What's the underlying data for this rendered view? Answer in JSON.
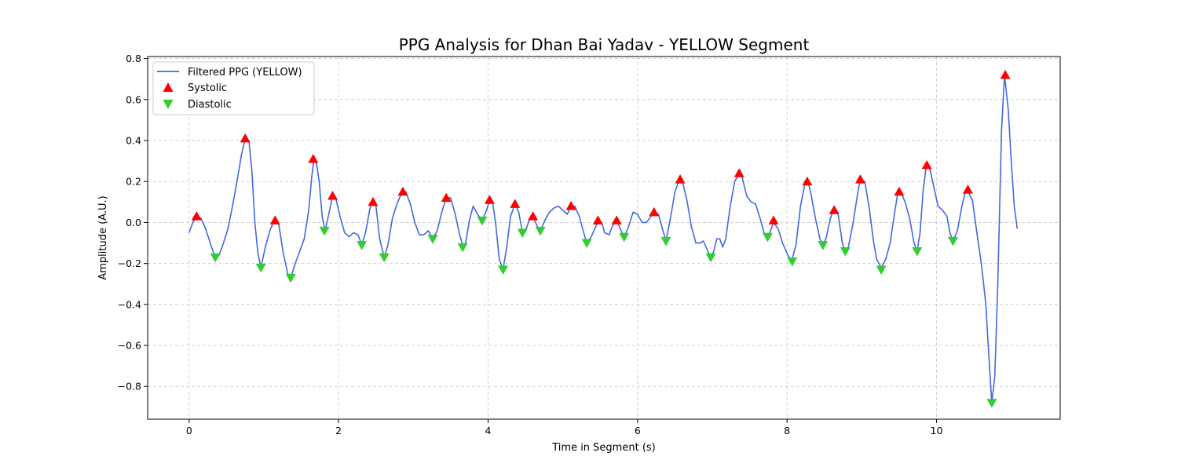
{
  "chart_data": {
    "type": "line",
    "title": "PPG Analysis for Dhan Bai Yadav - YELLOW Segment",
    "xlabel": "Time in Segment (s)",
    "ylabel": "Amplitude (A.U.)",
    "xlim": [
      -0.555,
      11.655
    ],
    "ylim": [
      -0.96,
      0.81
    ],
    "x_ticks": [
      0,
      2,
      4,
      6,
      8,
      10
    ],
    "y_ticks": [
      -0.8,
      -0.6,
      -0.4,
      -0.2,
      0.0,
      0.2,
      0.4,
      0.6,
      0.8
    ],
    "x_tick_labels": [
      "0",
      "2",
      "4",
      "6",
      "8",
      "10"
    ],
    "y_tick_labels": [
      "−0.8",
      "−0.6",
      "−0.4",
      "−0.2",
      "0.0",
      "0.2",
      "0.4",
      "0.6",
      "0.8"
    ],
    "grid": true,
    "legend_position": "top-left",
    "series": [
      {
        "name": "Filtered PPG (YELLOW)",
        "style": "line",
        "color": "#4169E1",
        "points": [
          [
            0.0,
            -0.05
          ],
          [
            0.05,
            0.0
          ],
          [
            0.1,
            0.03
          ],
          [
            0.16,
            0.02
          ],
          [
            0.22,
            -0.03
          ],
          [
            0.3,
            -0.12
          ],
          [
            0.35,
            -0.17
          ],
          [
            0.4,
            -0.16
          ],
          [
            0.46,
            -0.1
          ],
          [
            0.52,
            -0.03
          ],
          [
            0.58,
            0.08
          ],
          [
            0.64,
            0.2
          ],
          [
            0.7,
            0.33
          ],
          [
            0.75,
            0.41
          ],
          [
            0.8,
            0.4
          ],
          [
            0.84,
            0.25
          ],
          [
            0.88,
            0.0
          ],
          [
            0.92,
            -0.15
          ],
          [
            0.96,
            -0.22
          ],
          [
            1.02,
            -0.12
          ],
          [
            1.08,
            -0.04
          ],
          [
            1.14,
            0.01
          ],
          [
            1.2,
            -0.01
          ],
          [
            1.26,
            -0.15
          ],
          [
            1.32,
            -0.25
          ],
          [
            1.36,
            -0.27
          ],
          [
            1.42,
            -0.2
          ],
          [
            1.48,
            -0.14
          ],
          [
            1.54,
            -0.08
          ],
          [
            1.6,
            0.06
          ],
          [
            1.64,
            0.22
          ],
          [
            1.67,
            0.31
          ],
          [
            1.7,
            0.3
          ],
          [
            1.74,
            0.2
          ],
          [
            1.78,
            0.03
          ],
          [
            1.82,
            -0.04
          ],
          [
            1.88,
            0.06
          ],
          [
            1.92,
            0.13
          ],
          [
            1.96,
            0.12
          ],
          [
            2.02,
            0.03
          ],
          [
            2.08,
            -0.05
          ],
          [
            2.14,
            -0.07
          ],
          [
            2.2,
            -0.05
          ],
          [
            2.26,
            -0.06
          ],
          [
            2.31,
            -0.11
          ],
          [
            2.36,
            -0.05
          ],
          [
            2.42,
            0.07
          ],
          [
            2.46,
            0.1
          ],
          [
            2.5,
            0.08
          ],
          [
            2.55,
            -0.08
          ],
          [
            2.61,
            -0.17
          ],
          [
            2.66,
            -0.11
          ],
          [
            2.72,
            0.02
          ],
          [
            2.78,
            0.09
          ],
          [
            2.85,
            0.15
          ],
          [
            2.9,
            0.15
          ],
          [
            2.96,
            0.09
          ],
          [
            3.02,
            0.0
          ],
          [
            3.08,
            -0.06
          ],
          [
            3.14,
            -0.06
          ],
          [
            3.2,
            -0.04
          ],
          [
            3.26,
            -0.08
          ],
          [
            3.32,
            -0.04
          ],
          [
            3.38,
            0.05
          ],
          [
            3.44,
            0.12
          ],
          [
            3.5,
            0.12
          ],
          [
            3.56,
            0.04
          ],
          [
            3.62,
            -0.06
          ],
          [
            3.66,
            -0.11
          ],
          [
            3.7,
            -0.1
          ],
          [
            3.75,
            0.01
          ],
          [
            3.8,
            0.08
          ],
          [
            3.86,
            0.04
          ],
          [
            3.92,
            0.01
          ],
          [
            3.98,
            0.06
          ],
          [
            4.02,
            0.11
          ],
          [
            4.06,
            0.1
          ],
          [
            4.1,
            0.0
          ],
          [
            4.15,
            -0.18
          ],
          [
            4.2,
            -0.23
          ],
          [
            4.25,
            -0.12
          ],
          [
            4.3,
            0.03
          ],
          [
            4.36,
            0.09
          ],
          [
            4.41,
            0.05
          ],
          [
            4.46,
            -0.05
          ],
          [
            4.5,
            -0.04
          ],
          [
            4.56,
            0.02
          ],
          [
            4.6,
            0.03
          ],
          [
            4.66,
            -0.02
          ],
          [
            4.7,
            -0.04
          ],
          [
            4.76,
            0.01
          ],
          [
            4.82,
            0.05
          ],
          [
            4.88,
            0.07
          ],
          [
            4.94,
            0.08
          ],
          [
            5.0,
            0.06
          ],
          [
            5.06,
            0.04
          ],
          [
            5.11,
            0.08
          ],
          [
            5.16,
            0.08
          ],
          [
            5.22,
            0.03
          ],
          [
            5.28,
            -0.05
          ],
          [
            5.32,
            -0.1
          ],
          [
            5.38,
            -0.07
          ],
          [
            5.44,
            -0.02
          ],
          [
            5.48,
            0.01
          ],
          [
            5.52,
            0.0
          ],
          [
            5.56,
            -0.05
          ],
          [
            5.62,
            -0.06
          ],
          [
            5.66,
            -0.02
          ],
          [
            5.72,
            0.01
          ],
          [
            5.78,
            -0.04
          ],
          [
            5.82,
            -0.07
          ],
          [
            5.88,
            -0.02
          ],
          [
            5.94,
            0.05
          ],
          [
            6.0,
            0.04
          ],
          [
            6.06,
            0.0
          ],
          [
            6.12,
            0.0
          ],
          [
            6.16,
            0.02
          ],
          [
            6.22,
            0.05
          ],
          [
            6.28,
            0.04
          ],
          [
            6.34,
            -0.04
          ],
          [
            6.38,
            -0.09
          ],
          [
            6.44,
            0.02
          ],
          [
            6.5,
            0.15
          ],
          [
            6.56,
            0.21
          ],
          [
            6.6,
            0.2
          ],
          [
            6.66,
            0.11
          ],
          [
            6.72,
            -0.02
          ],
          [
            6.78,
            -0.1
          ],
          [
            6.84,
            -0.1
          ],
          [
            6.88,
            -0.09
          ],
          [
            6.94,
            -0.14
          ],
          [
            6.98,
            -0.17
          ],
          [
            7.02,
            -0.14
          ],
          [
            7.06,
            -0.08
          ],
          [
            7.1,
            -0.08
          ],
          [
            7.14,
            -0.12
          ],
          [
            7.18,
            -0.08
          ],
          [
            7.24,
            0.08
          ],
          [
            7.3,
            0.2
          ],
          [
            7.36,
            0.24
          ],
          [
            7.4,
            0.22
          ],
          [
            7.46,
            0.13
          ],
          [
            7.52,
            0.1
          ],
          [
            7.58,
            0.09
          ],
          [
            7.64,
            0.02
          ],
          [
            7.7,
            -0.06
          ],
          [
            7.74,
            -0.07
          ],
          [
            7.78,
            -0.04
          ],
          [
            7.82,
            0.0
          ],
          [
            7.88,
            -0.03
          ],
          [
            7.94,
            -0.1
          ],
          [
            8.0,
            -0.15
          ],
          [
            8.06,
            -0.19
          ],
          [
            8.12,
            -0.11
          ],
          [
            8.18,
            0.08
          ],
          [
            8.24,
            0.19
          ],
          [
            8.28,
            0.2
          ],
          [
            8.32,
            0.14
          ],
          [
            8.38,
            0.02
          ],
          [
            8.44,
            -0.08
          ],
          [
            8.48,
            -0.11
          ],
          [
            8.52,
            -0.08
          ],
          [
            8.58,
            0.02
          ],
          [
            8.62,
            0.06
          ],
          [
            8.68,
            0.05
          ],
          [
            8.74,
            -0.1
          ],
          [
            8.78,
            -0.15
          ],
          [
            8.82,
            -0.12
          ],
          [
            8.88,
            -0.01
          ],
          [
            8.94,
            0.13
          ],
          [
            8.98,
            0.21
          ],
          [
            9.04,
            0.2
          ],
          [
            9.1,
            0.07
          ],
          [
            9.16,
            -0.1
          ],
          [
            9.2,
            -0.18
          ],
          [
            9.26,
            -0.22
          ],
          [
            9.32,
            -0.18
          ],
          [
            9.38,
            -0.1
          ],
          [
            9.44,
            0.05
          ],
          [
            9.48,
            0.14
          ],
          [
            9.52,
            0.15
          ],
          [
            9.58,
            0.1
          ],
          [
            9.64,
            0.02
          ],
          [
            9.7,
            -0.1
          ],
          [
            9.74,
            -0.14
          ],
          [
            9.78,
            -0.05
          ],
          [
            9.82,
            0.15
          ],
          [
            9.86,
            0.27
          ],
          [
            9.9,
            0.28
          ],
          [
            9.96,
            0.18
          ],
          [
            10.02,
            0.08
          ],
          [
            10.08,
            0.06
          ],
          [
            10.14,
            0.03
          ],
          [
            10.18,
            -0.05
          ],
          [
            10.22,
            -0.09
          ],
          [
            10.28,
            -0.04
          ],
          [
            10.34,
            0.08
          ],
          [
            10.38,
            0.14
          ],
          [
            10.42,
            0.15
          ],
          [
            10.48,
            0.11
          ],
          [
            10.54,
            -0.05
          ],
          [
            10.6,
            -0.2
          ],
          [
            10.66,
            -0.4
          ],
          [
            10.7,
            -0.65
          ],
          [
            10.74,
            -0.88
          ],
          [
            10.78,
            -0.75
          ],
          [
            10.82,
            -0.3
          ],
          [
            10.87,
            0.45
          ],
          [
            10.91,
            0.72
          ],
          [
            10.96,
            0.55
          ],
          [
            11.0,
            0.3
          ],
          [
            11.04,
            0.08
          ],
          [
            11.08,
            -0.03
          ]
        ]
      },
      {
        "name": "Systolic",
        "style": "marker-up",
        "color": "#FF0000",
        "points": [
          [
            0.1,
            0.03
          ],
          [
            0.75,
            0.41
          ],
          [
            1.15,
            0.01
          ],
          [
            1.66,
            0.31
          ],
          [
            1.92,
            0.13
          ],
          [
            2.46,
            0.1
          ],
          [
            2.86,
            0.15
          ],
          [
            3.44,
            0.12
          ],
          [
            4.02,
            0.11
          ],
          [
            4.36,
            0.09
          ],
          [
            4.6,
            0.03
          ],
          [
            5.11,
            0.08
          ],
          [
            5.47,
            0.01
          ],
          [
            5.72,
            0.01
          ],
          [
            6.22,
            0.05
          ],
          [
            6.57,
            0.21
          ],
          [
            7.36,
            0.24
          ],
          [
            7.82,
            0.01
          ],
          [
            8.27,
            0.2
          ],
          [
            8.63,
            0.06
          ],
          [
            8.98,
            0.21
          ],
          [
            9.5,
            0.15
          ],
          [
            9.87,
            0.28
          ],
          [
            10.42,
            0.16
          ],
          [
            10.92,
            0.72
          ]
        ]
      },
      {
        "name": "Diastolic",
        "style": "marker-down",
        "color": "#32CD32",
        "points": [
          [
            0.35,
            -0.17
          ],
          [
            0.96,
            -0.22
          ],
          [
            1.36,
            -0.27
          ],
          [
            1.81,
            -0.04
          ],
          [
            2.31,
            -0.11
          ],
          [
            2.61,
            -0.17
          ],
          [
            3.26,
            -0.08
          ],
          [
            3.66,
            -0.12
          ],
          [
            3.92,
            0.01
          ],
          [
            4.2,
            -0.23
          ],
          [
            4.46,
            -0.05
          ],
          [
            4.7,
            -0.04
          ],
          [
            5.32,
            -0.1
          ],
          [
            5.82,
            -0.07
          ],
          [
            6.38,
            -0.09
          ],
          [
            6.98,
            -0.17
          ],
          [
            7.74,
            -0.07
          ],
          [
            8.07,
            -0.19
          ],
          [
            8.48,
            -0.11
          ],
          [
            8.78,
            -0.14
          ],
          [
            9.26,
            -0.23
          ],
          [
            9.74,
            -0.14
          ],
          [
            10.22,
            -0.09
          ],
          [
            10.74,
            -0.88
          ]
        ]
      }
    ]
  }
}
